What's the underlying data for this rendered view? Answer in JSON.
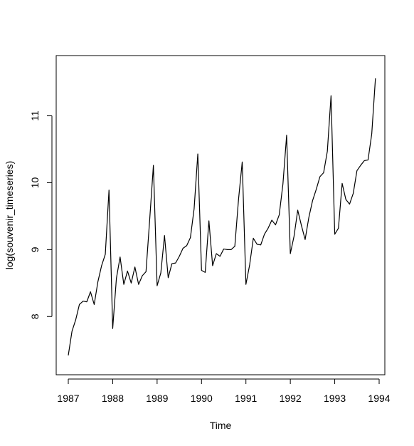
{
  "chart_data": {
    "type": "line",
    "title": "",
    "xlabel": "Time",
    "ylabel": "log(souvenir_timeseries)",
    "xlim": [
      1987,
      1994
    ],
    "ylim": [
      7.3,
      11.73
    ],
    "x_ticks": [
      "1987",
      "1988",
      "1989",
      "1990",
      "1991",
      "1992",
      "1993",
      "1994"
    ],
    "y_ticks": [
      "8",
      "9",
      "10",
      "11"
    ],
    "grid": false,
    "line_color": "#000000",
    "series": [
      {
        "start": 1987,
        "frequency": 12,
        "values": [
          7.42,
          7.78,
          7.95,
          8.18,
          8.23,
          8.22,
          8.37,
          8.18,
          8.52,
          8.76,
          8.93,
          9.89,
          7.82,
          8.57,
          8.89,
          8.48,
          8.68,
          8.5,
          8.74,
          8.48,
          8.61,
          8.67,
          9.45,
          10.26,
          8.46,
          8.65,
          9.21,
          8.58,
          8.79,
          8.8,
          8.9,
          9.02,
          9.06,
          9.18,
          9.61,
          10.43,
          8.69,
          8.66,
          9.43,
          8.76,
          8.94,
          8.9,
          9.01,
          9.0,
          9.0,
          9.05,
          9.75,
          10.31,
          8.48,
          8.77,
          9.17,
          9.08,
          9.07,
          9.23,
          9.32,
          9.44,
          9.37,
          9.52,
          9.98,
          10.71,
          8.94,
          9.2,
          9.59,
          9.36,
          9.15,
          9.48,
          9.73,
          9.9,
          10.09,
          10.15,
          10.47,
          11.3,
          9.23,
          9.32,
          9.99,
          9.75,
          9.68,
          9.84,
          10.18,
          10.26,
          10.33,
          10.34,
          10.73,
          11.56
        ]
      }
    ]
  }
}
